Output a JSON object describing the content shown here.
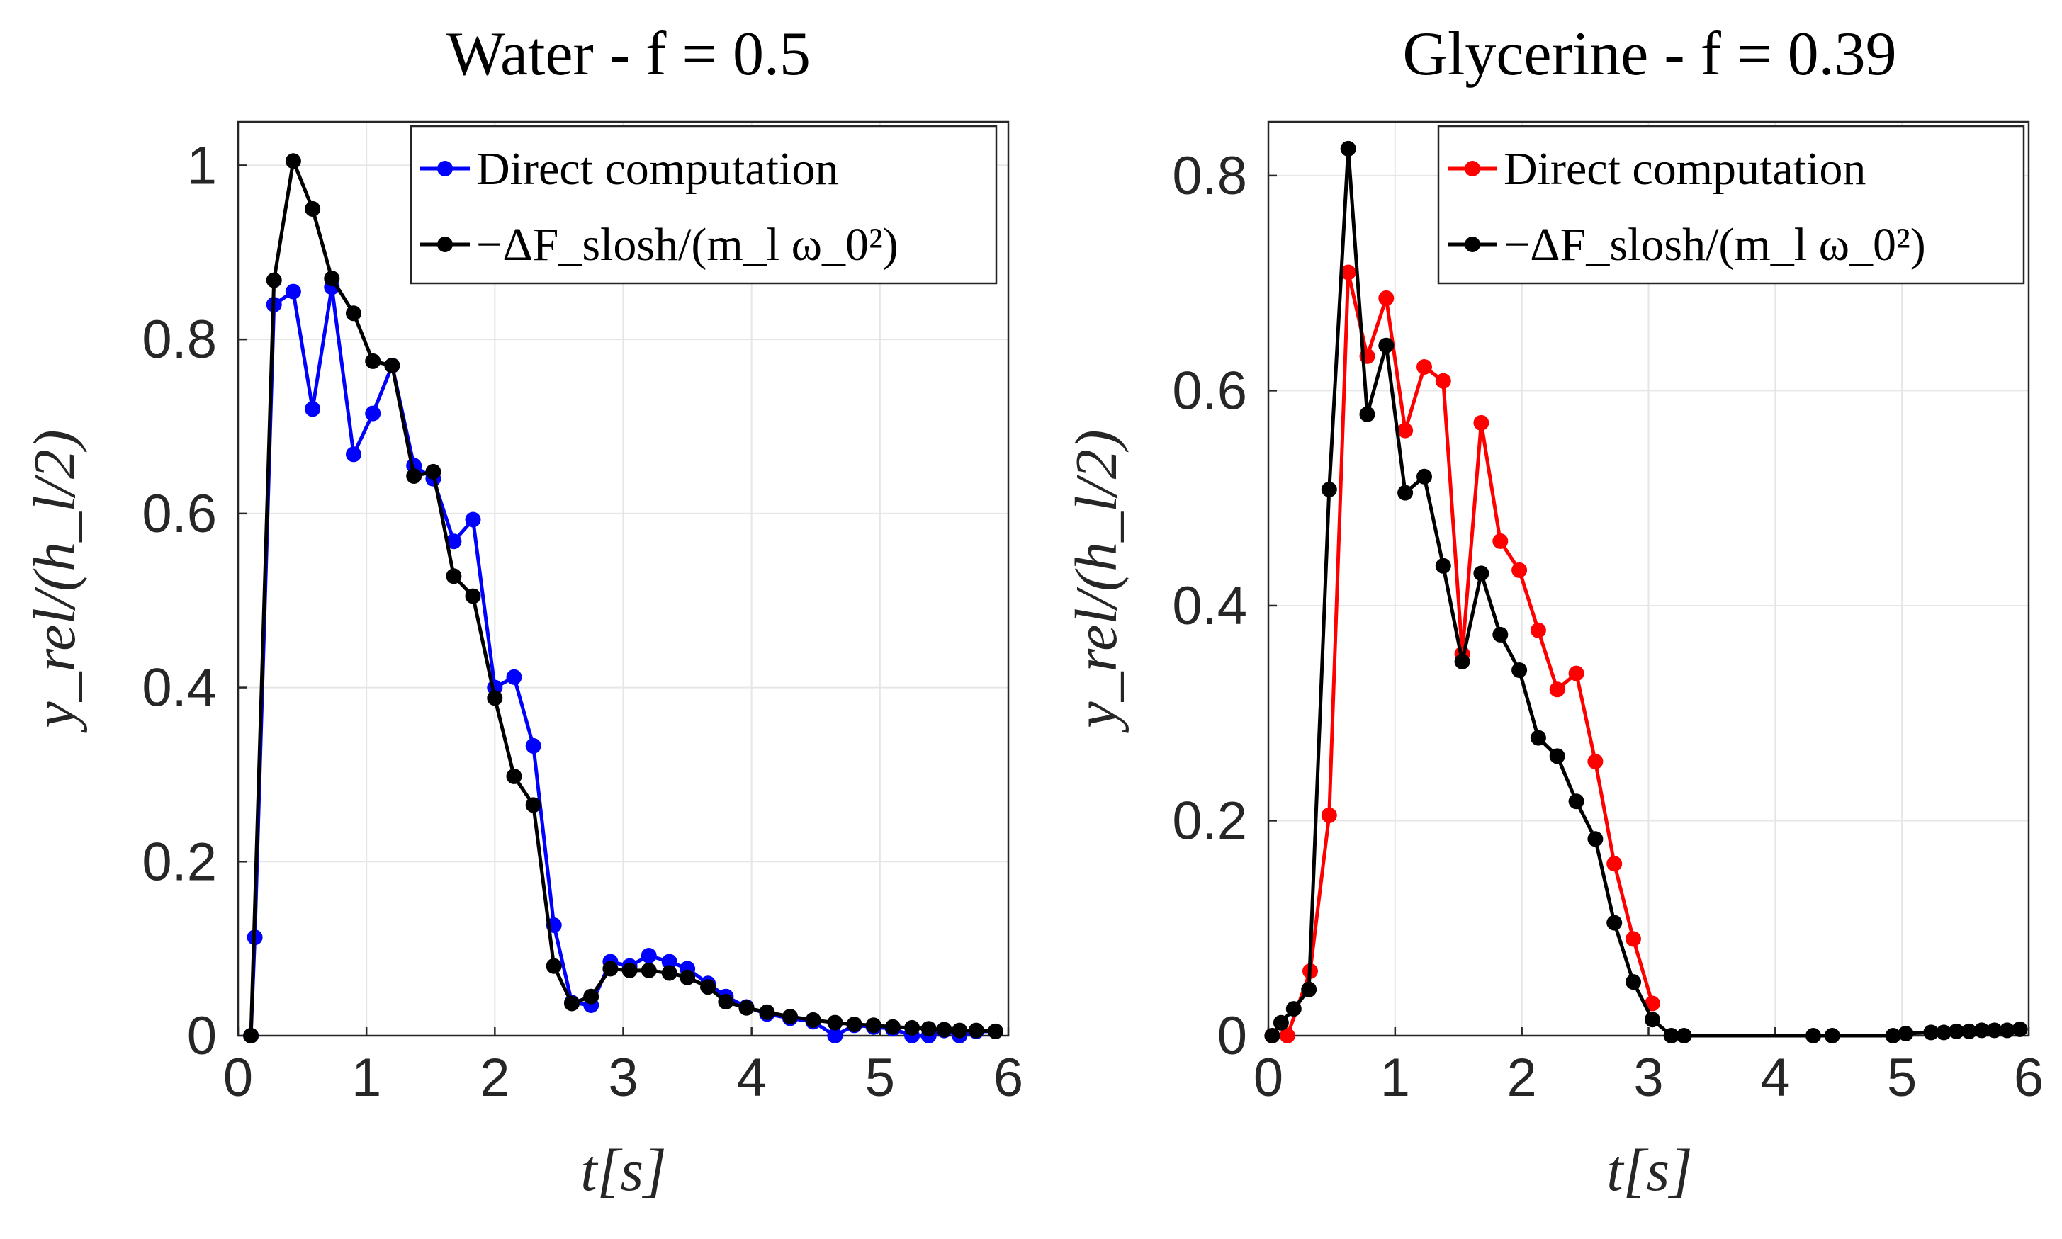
{
  "chart_data": [
    {
      "type": "line",
      "title": "Water - f = 0.5",
      "xlabel": "t[s]",
      "ylabel": "y_rel/(h_l/2)",
      "xlim": [
        0,
        6
      ],
      "ylim": [
        0,
        1.05
      ],
      "xticks": [
        "0",
        "1",
        "2",
        "3",
        "4",
        "5",
        "6"
      ],
      "yticks": [
        "0",
        "0.2",
        "0.4",
        "0.6",
        "0.8",
        "1"
      ],
      "grid": true,
      "legend_position": "top-right",
      "series": [
        {
          "name": "Direct computation",
          "color": "#0000ff",
          "points": [
            [
              0.1,
              0
            ],
            [
              0.13,
              0.113
            ],
            [
              0.28,
              0.84
            ],
            [
              0.43,
              0.855
            ],
            [
              0.58,
              0.72
            ],
            [
              0.73,
              0.86
            ],
            [
              0.9,
              0.668
            ],
            [
              1.05,
              0.715
            ],
            [
              1.2,
              0.77
            ],
            [
              1.37,
              0.655
            ],
            [
              1.52,
              0.64
            ],
            [
              1.68,
              0.568
            ],
            [
              1.83,
              0.593
            ],
            [
              2.0,
              0.4
            ],
            [
              2.15,
              0.412
            ],
            [
              2.3,
              0.333
            ],
            [
              2.46,
              0.127
            ],
            [
              2.6,
              0.038
            ],
            [
              2.75,
              0.035
            ],
            [
              2.9,
              0.085
            ],
            [
              3.05,
              0.08
            ],
            [
              3.2,
              0.092
            ],
            [
              3.36,
              0.085
            ],
            [
              3.5,
              0.077
            ],
            [
              3.66,
              0.06
            ],
            [
              3.8,
              0.045
            ],
            [
              3.96,
              0.033
            ],
            [
              4.12,
              0.025
            ],
            [
              4.3,
              0.02
            ],
            [
              4.48,
              0.016
            ],
            [
              4.65,
              0
            ],
            [
              4.8,
              0.012
            ],
            [
              4.95,
              0.01
            ],
            [
              5.1,
              0.008
            ],
            [
              5.25,
              0
            ],
            [
              5.38,
              0
            ],
            [
              5.5,
              0.006
            ],
            [
              5.62,
              0
            ],
            [
              5.75,
              0.005
            ],
            [
              5.9,
              0.005
            ]
          ]
        },
        {
          "name": "−ΔF_slosh/(m_l ω_0²)",
          "color": "#000000",
          "points": [
            [
              0.1,
              0
            ],
            [
              0.28,
              0.868
            ],
            [
              0.43,
              1.005
            ],
            [
              0.58,
              0.95
            ],
            [
              0.73,
              0.87
            ],
            [
              0.9,
              0.83
            ],
            [
              1.05,
              0.775
            ],
            [
              1.2,
              0.77
            ],
            [
              1.37,
              0.643
            ],
            [
              1.52,
              0.648
            ],
            [
              1.68,
              0.528
            ],
            [
              1.83,
              0.505
            ],
            [
              2.0,
              0.388
            ],
            [
              2.15,
              0.298
            ],
            [
              2.3,
              0.265
            ],
            [
              2.46,
              0.08
            ],
            [
              2.6,
              0.037
            ],
            [
              2.75,
              0.045
            ],
            [
              2.9,
              0.077
            ],
            [
              3.05,
              0.075
            ],
            [
              3.2,
              0.075
            ],
            [
              3.36,
              0.072
            ],
            [
              3.5,
              0.067
            ],
            [
              3.66,
              0.056
            ],
            [
              3.8,
              0.039
            ],
            [
              3.96,
              0.032
            ],
            [
              4.12,
              0.027
            ],
            [
              4.3,
              0.022
            ],
            [
              4.48,
              0.018
            ],
            [
              4.65,
              0.015
            ],
            [
              4.8,
              0.013
            ],
            [
              4.95,
              0.012
            ],
            [
              5.1,
              0.01
            ],
            [
              5.25,
              0.009
            ],
            [
              5.38,
              0.008
            ],
            [
              5.5,
              0.007
            ],
            [
              5.62,
              0.006
            ],
            [
              5.75,
              0.006
            ],
            [
              5.9,
              0.005
            ]
          ]
        }
      ]
    },
    {
      "type": "line",
      "title": "Glycerine - f = 0.39",
      "xlabel": "t[s]",
      "ylabel": "y_rel/(h_l/2)",
      "xlim": [
        0,
        6
      ],
      "ylim": [
        0,
        0.85
      ],
      "xticks": [
        "0",
        "1",
        "2",
        "3",
        "4",
        "5",
        "6"
      ],
      "yticks": [
        "0",
        "0.2",
        "0.4",
        "0.6",
        "0.8"
      ],
      "grid": true,
      "legend_position": "top-right",
      "series": [
        {
          "name": "Direct computation",
          "color": "#ff0000",
          "points": [
            [
              0.03,
              0
            ],
            [
              0.15,
              0
            ],
            [
              0.33,
              0.06
            ],
            [
              0.48,
              0.205
            ],
            [
              0.63,
              0.71
            ],
            [
              0.78,
              0.632
            ],
            [
              0.93,
              0.686
            ],
            [
              1.08,
              0.563
            ],
            [
              1.23,
              0.622
            ],
            [
              1.38,
              0.609
            ],
            [
              1.53,
              0.355
            ],
            [
              1.68,
              0.57
            ],
            [
              1.83,
              0.46
            ],
            [
              1.98,
              0.433
            ],
            [
              2.13,
              0.377
            ],
            [
              2.28,
              0.322
            ],
            [
              2.43,
              0.337
            ],
            [
              2.58,
              0.255
            ],
            [
              2.73,
              0.16
            ],
            [
              2.88,
              0.09
            ],
            [
              3.03,
              0.03
            ]
          ]
        },
        {
          "name": "−ΔF_slosh/(m_l ω_0²)",
          "color": "#000000",
          "points": [
            [
              0.03,
              0
            ],
            [
              0.1,
              0.012
            ],
            [
              0.2,
              0.025
            ],
            [
              0.32,
              0.043
            ],
            [
              0.48,
              0.508
            ],
            [
              0.63,
              0.825
            ],
            [
              0.78,
              0.578
            ],
            [
              0.93,
              0.642
            ],
            [
              1.08,
              0.505
            ],
            [
              1.23,
              0.52
            ],
            [
              1.38,
              0.437
            ],
            [
              1.53,
              0.348
            ],
            [
              1.68,
              0.43
            ],
            [
              1.83,
              0.373
            ],
            [
              1.98,
              0.34
            ],
            [
              2.13,
              0.277
            ],
            [
              2.28,
              0.26
            ],
            [
              2.43,
              0.218
            ],
            [
              2.58,
              0.183
            ],
            [
              2.73,
              0.105
            ],
            [
              2.88,
              0.05
            ],
            [
              3.03,
              0.015
            ],
            [
              3.18,
              0
            ],
            [
              3.28,
              0
            ],
            [
              4.3,
              0
            ],
            [
              4.45,
              0
            ],
            [
              4.93,
              0
            ],
            [
              5.03,
              0.002
            ],
            [
              5.23,
              0.003
            ],
            [
              5.33,
              0.003
            ],
            [
              5.43,
              0.004
            ],
            [
              5.53,
              0.004
            ],
            [
              5.63,
              0.005
            ],
            [
              5.73,
              0.005
            ],
            [
              5.83,
              0.005
            ],
            [
              5.93,
              0.006
            ]
          ]
        }
      ]
    }
  ]
}
